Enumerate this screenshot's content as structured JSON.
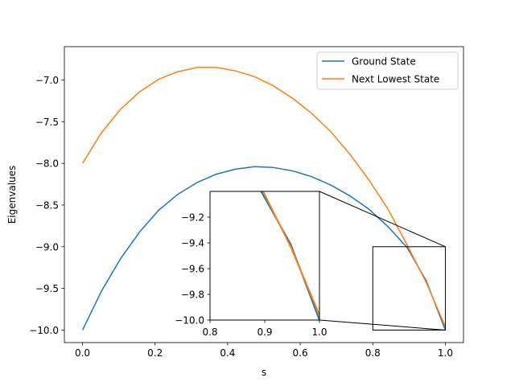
{
  "chart_data": {
    "type": "line",
    "title": "",
    "xlabel": "s",
    "ylabel": "Eigenvalues",
    "xlim": [
      -0.05,
      1.05
    ],
    "ylim": [
      -10.15,
      -6.6
    ],
    "xticks": [
      0.0,
      0.2,
      0.4,
      0.6,
      0.8,
      1.0
    ],
    "xtick_labels": [
      "0.0",
      "0.2",
      "0.4",
      "0.6",
      "0.8",
      "1.0"
    ],
    "yticks": [
      -10.0,
      -9.5,
      -9.0,
      -8.5,
      -8.0,
      -7.5,
      -7.0
    ],
    "ytick_labels": [
      "−10.0",
      "−9.5",
      "−9.0",
      "−8.5",
      "−8.0",
      "−7.5",
      "−7.0"
    ],
    "grid": false,
    "legend_position": "upper-right",
    "colors": {
      "ground": "#1f77b4",
      "next": "#ff7f0e"
    },
    "x": [
      0.0,
      0.0526,
      0.1053,
      0.1579,
      0.2105,
      0.2632,
      0.3158,
      0.3684,
      0.4211,
      0.4737,
      0.5263,
      0.5789,
      0.6316,
      0.6842,
      0.7368,
      0.7895,
      0.8421,
      0.8947,
      0.9474,
      1.0
    ],
    "series": [
      {
        "name": "Ground State",
        "values": [
          -10.0,
          -9.53,
          -9.14,
          -8.82,
          -8.56,
          -8.37,
          -8.23,
          -8.13,
          -8.07,
          -8.04,
          -8.05,
          -8.09,
          -8.16,
          -8.26,
          -8.39,
          -8.55,
          -8.76,
          -9.01,
          -9.41,
          -10.0
        ]
      },
      {
        "name": "Next Lowest State",
        "values": [
          -8.0,
          -7.63,
          -7.35,
          -7.14,
          -6.99,
          -6.9,
          -6.85,
          -6.85,
          -6.89,
          -6.96,
          -7.07,
          -7.22,
          -7.4,
          -7.62,
          -7.89,
          -8.2,
          -8.55,
          -8.98,
          -9.43,
          -9.96
        ]
      }
    ],
    "inset": {
      "xlim": [
        0.8,
        1.0
      ],
      "ylim": [
        -10.0,
        -9.0
      ],
      "xticks": [
        0.8,
        0.9,
        1.0
      ],
      "xtick_labels": [
        "0.8",
        "0.9",
        "1.0"
      ],
      "yticks": [
        -10.0,
        -9.8,
        -9.6,
        -9.4,
        -9.2
      ],
      "ytick_labels": [
        "−10.0",
        "−9.8",
        "−9.6",
        "−9.4",
        "−9.2"
      ],
      "zoom_box": {
        "xlim": [
          0.8,
          1.0
        ],
        "ylim": [
          -10.0,
          -9.0
        ]
      }
    }
  }
}
